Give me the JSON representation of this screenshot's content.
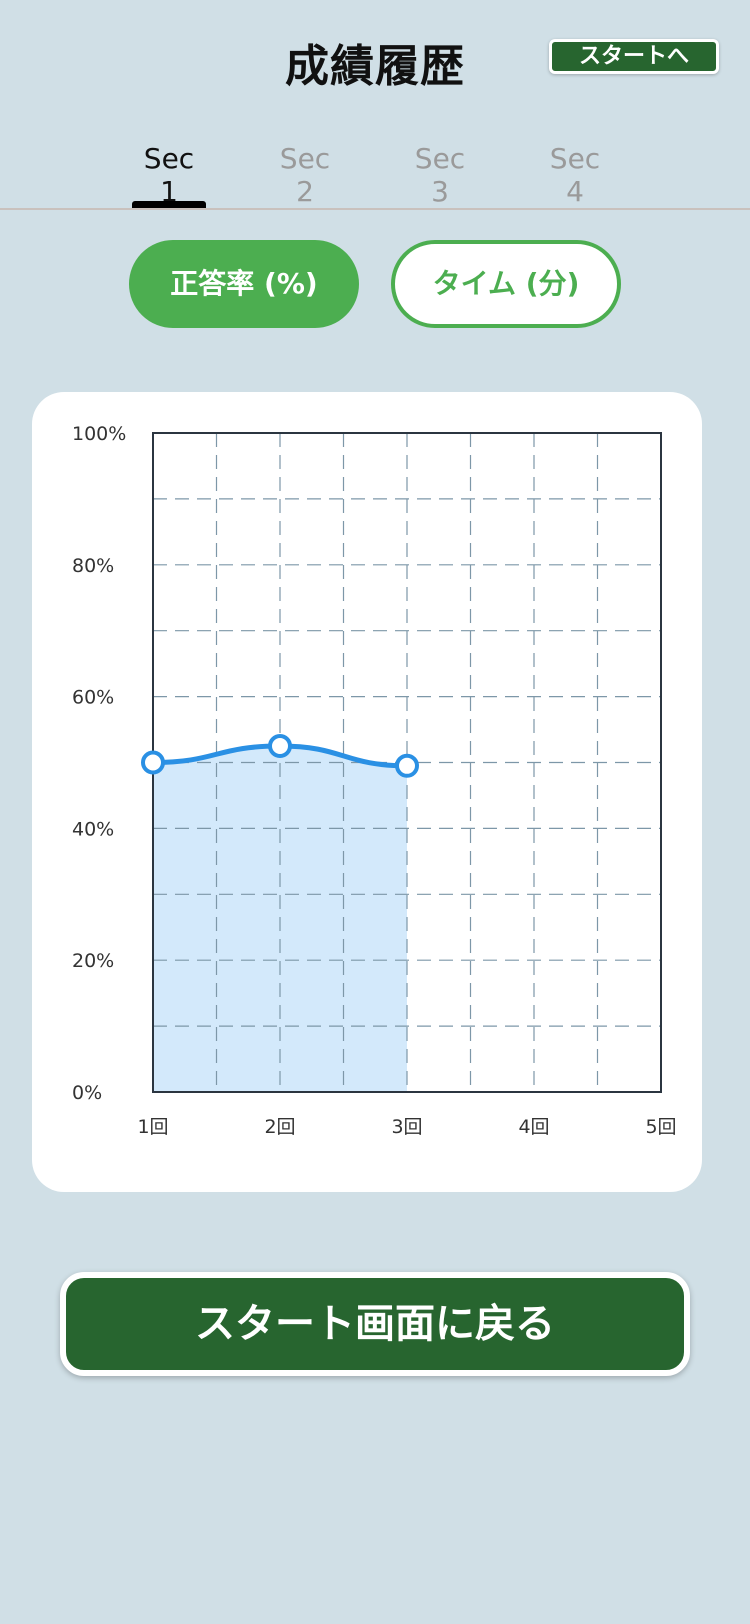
{
  "header": {
    "title": "成績履歴",
    "start_link_label": "スタートへ"
  },
  "tabs": [
    {
      "label": "Sec 1",
      "active": true
    },
    {
      "label": "Sec 2",
      "active": false
    },
    {
      "label": "Sec 3",
      "active": false
    },
    {
      "label": "Sec 4",
      "active": false
    }
  ],
  "metric_toggle": {
    "accuracy_label": "正答率 (%)",
    "time_label": "タイム (分)",
    "selected": "accuracy"
  },
  "colors": {
    "background": "#d0dfe6",
    "accent_green": "#4cae50",
    "dark_green": "#27652f",
    "line_blue": "#2a90e4",
    "area_fill": "#d3e9fb"
  },
  "chart_data": {
    "type": "area",
    "categories": [
      "1回",
      "2回",
      "3回",
      "4回",
      "5回"
    ],
    "values": [
      50,
      52.5,
      49.5,
      null,
      null
    ],
    "y_tick_labels": [
      "0%",
      "20%",
      "40%",
      "60%",
      "80%",
      "100%"
    ],
    "ylim": [
      0,
      100
    ],
    "grid": true
  },
  "footer": {
    "back_button_label": "スタート画面に戻る"
  }
}
